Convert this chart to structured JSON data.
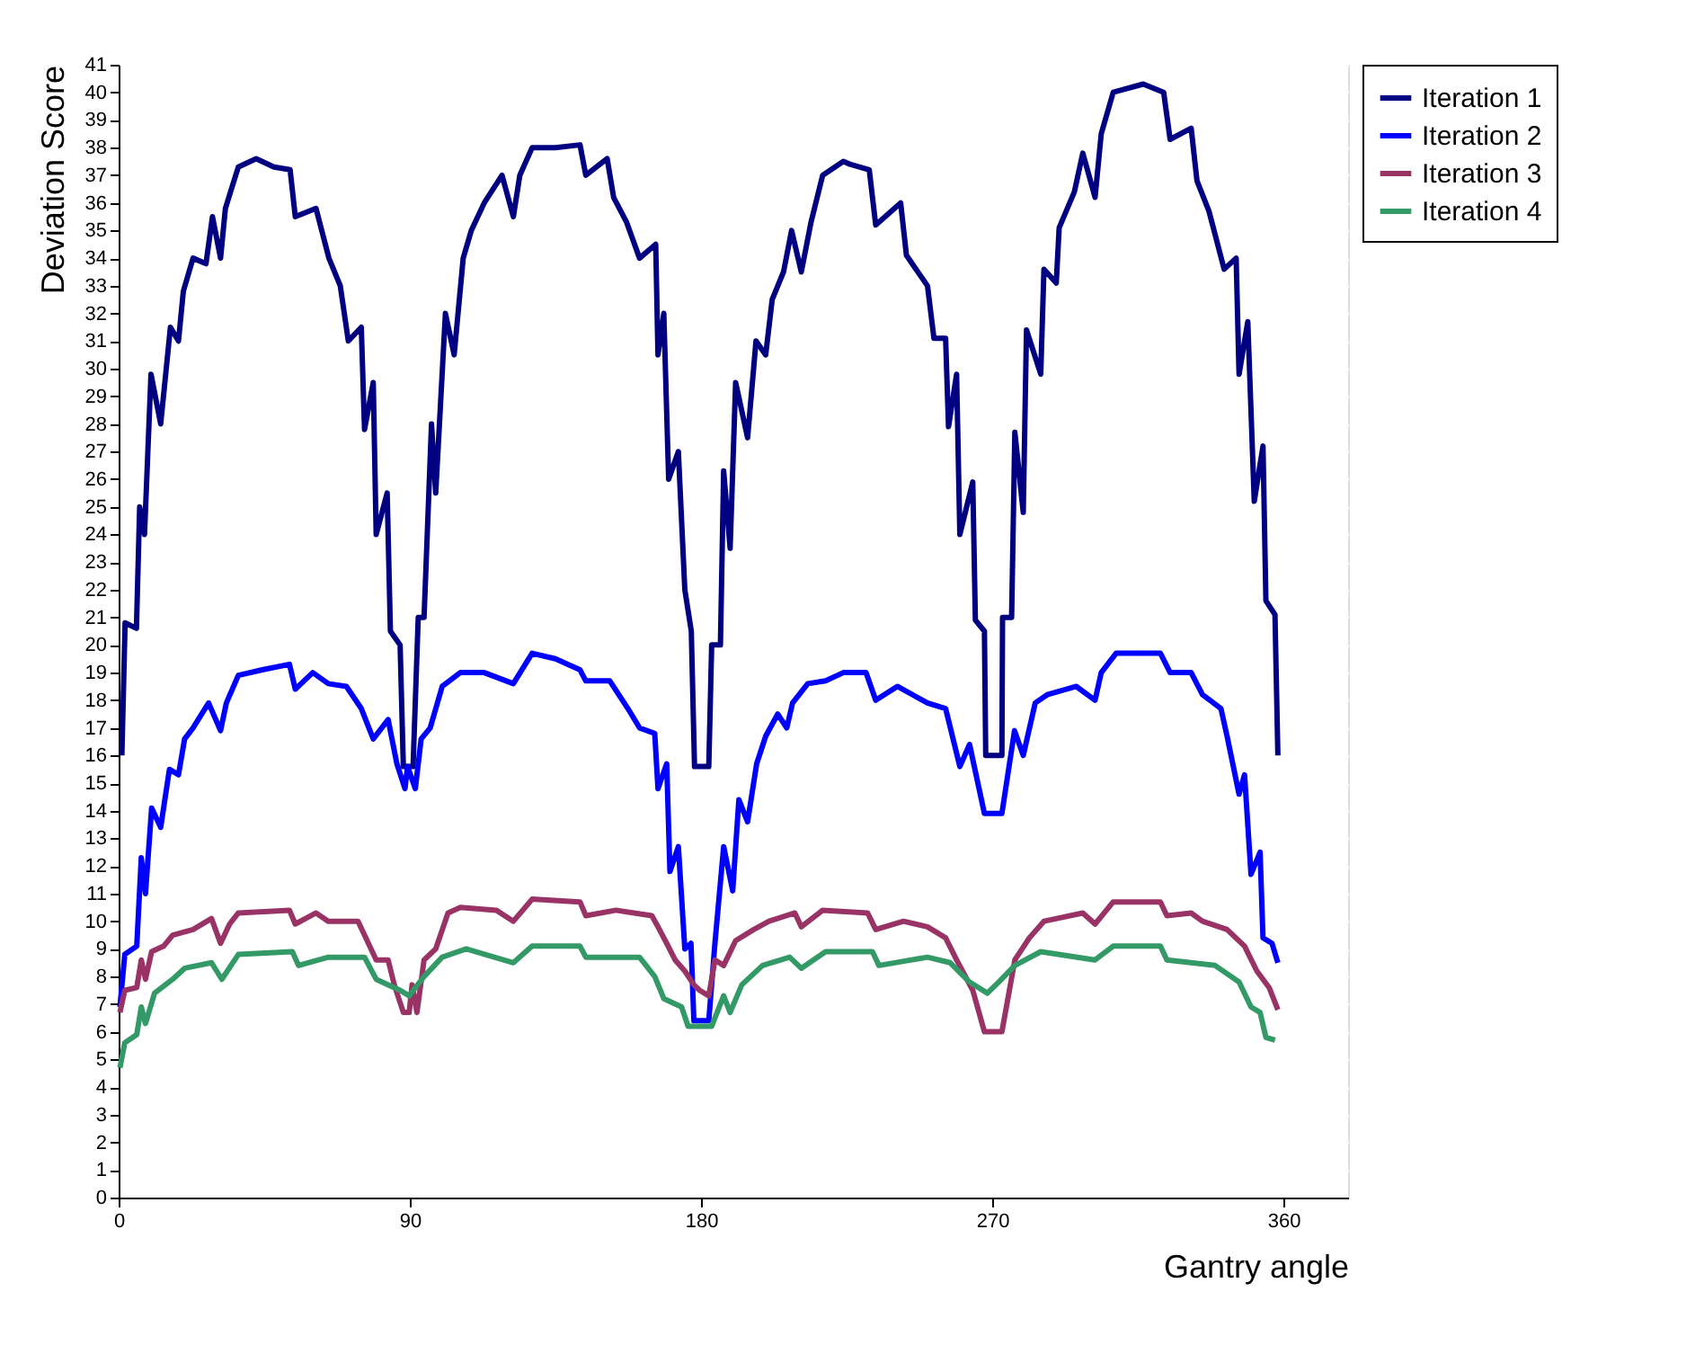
{
  "chart_data": {
    "type": "line",
    "xlabel": "Gantry angle",
    "ylabel": "Deviation Score",
    "xlim": [
      0,
      380
    ],
    "xticks": [
      0,
      90,
      180,
      270,
      360
    ],
    "ylim": [
      0,
      41
    ],
    "yticks": [
      0,
      1,
      2,
      3,
      4,
      5,
      6,
      7,
      8,
      9,
      10,
      11,
      12,
      13,
      14,
      15,
      16,
      17,
      18,
      19,
      20,
      21,
      22,
      23,
      24,
      25,
      26,
      27,
      28,
      29,
      30,
      31,
      32,
      33,
      34,
      35,
      36,
      37,
      38,
      39,
      40,
      41
    ],
    "grid": "y",
    "legend": "right",
    "marker": "none",
    "line_style": "solid",
    "series": [
      {
        "name": "Iteration 1",
        "color": "#000080",
        "x": [
          1,
          2,
          5.5,
          6.5,
          8,
          10,
          13,
          16,
          18.5,
          20,
          23,
          27,
          29,
          31.5,
          33,
          37,
          42.5,
          48,
          53,
          54.6,
          61,
          65,
          68.5,
          71,
          75,
          76,
          78.7,
          79.6,
          83,
          84,
          87,
          88,
          91,
          92.6,
          94.4,
          96.7,
          98,
          101,
          103.7,
          106.5,
          109,
          113,
          118.5,
          122,
          124,
          127.8,
          135,
          142.6,
          144.4,
          151,
          153,
          157,
          161,
          166,
          166.7,
          168.5,
          170,
          173,
          175,
          177,
          178,
          182.4,
          183.3,
          186,
          187,
          189,
          190.7,
          194.4,
          197,
          200,
          202,
          205.5,
          208,
          211,
          214,
          217.6,
          224,
          226,
          232,
          234,
          241.7,
          243.5,
          250,
          252,
          255.6,
          256.5,
          259,
          260,
          264,
          264.8,
          267.6,
          268,
          273,
          273.2,
          276,
          277,
          279.6,
          280.6,
          285,
          286,
          289.8,
          290.7,
          295.4,
          298,
          301.8,
          303.7,
          307.4,
          316.7,
          323,
          325,
          331.5,
          333.3,
          337,
          341.7,
          345.4,
          346.3,
          349,
          351,
          353.7,
          354.6,
          357.4,
          358.3
        ],
        "values": [
          16,
          20.8,
          20.6,
          25,
          24,
          29.8,
          28,
          31.5,
          31,
          32.8,
          34,
          33.8,
          35.5,
          34,
          35.8,
          37.3,
          37.6,
          37.3,
          37.2,
          35.5,
          35.8,
          34,
          33,
          31,
          31.5,
          27.8,
          29.5,
          24,
          25.5,
          20.5,
          20,
          15.6,
          15.6,
          21,
          21,
          28,
          25.5,
          32,
          30.5,
          34,
          35,
          36,
          37,
          35.5,
          37,
          38,
          38,
          38.1,
          37,
          37.6,
          36.2,
          35.3,
          34,
          34.5,
          30.5,
          32,
          26,
          27,
          22,
          20.5,
          15.6,
          15.6,
          20,
          20,
          26.3,
          23.5,
          29.5,
          27.5,
          31,
          30.5,
          32.5,
          33.5,
          35,
          33.5,
          35.3,
          37,
          37.5,
          37.4,
          37.2,
          35.2,
          36,
          34.1,
          33,
          31.1,
          31.1,
          27.9,
          29.8,
          24,
          25.9,
          20.9,
          20.5,
          16,
          16,
          21,
          21,
          27.7,
          24.8,
          31.4,
          29.8,
          33.6,
          33.1,
          35.1,
          36.4,
          37.8,
          36.2,
          38.5,
          40,
          40.3,
          40,
          38.3,
          38.7,
          36.8,
          35.7,
          33.6,
          34,
          29.8,
          31.7,
          25.2,
          27.2,
          21.6,
          21.1,
          16
        ]
      },
      {
        "name": "Iteration 2",
        "color": "#0000ff",
        "x": [
          0.4,
          1.9,
          5.6,
          7,
          8.3,
          10.2,
          13,
          15.7,
          18.5,
          20.4,
          23,
          27.8,
          31.5,
          33.3,
          37,
          44.4,
          52.8,
          54.6,
          60,
          64.8,
          70.4,
          75,
          78.7,
          83.3,
          86,
          88.5,
          89.3,
          91.7,
          93.5,
          96.3,
          100,
          105.6,
          113,
          122,
          127.8,
          135,
          142.6,
          144.4,
          151.8,
          157.4,
          161,
          165.7,
          166.7,
          169.4,
          170.4,
          173,
          175,
          176.9,
          177.8,
          182.4,
          184.3,
          187,
          189.8,
          191.7,
          194.4,
          197.2,
          200,
          203.7,
          206.5,
          208.3,
          213,
          218.5,
          224,
          231,
          234,
          240.7,
          250,
          255.6,
          260,
          263,
          267.6,
          273,
          276.9,
          279.6,
          283.3,
          287,
          296,
          301.8,
          303.7,
          308.3,
          322,
          325,
          331.5,
          335,
          340.7,
          342.6,
          346.3,
          348,
          350,
          352.8,
          353.7,
          356.5,
          358.3
        ],
        "values": [
          6.9,
          8.8,
          9.1,
          12.3,
          11,
          14.1,
          13.4,
          15.5,
          15.3,
          16.6,
          17,
          17.9,
          16.9,
          17.9,
          18.9,
          19.1,
          19.3,
          18.4,
          19,
          18.6,
          18.5,
          17.7,
          16.6,
          17.3,
          15.7,
          14.8,
          15.6,
          14.8,
          16.6,
          17,
          18.5,
          19,
          19,
          18.6,
          19.7,
          19.5,
          19.1,
          18.7,
          18.7,
          17.7,
          17,
          16.8,
          14.8,
          15.7,
          11.8,
          12.7,
          9,
          9.2,
          6.4,
          6.4,
          9.2,
          12.7,
          11.1,
          14.4,
          13.6,
          15.7,
          16.7,
          17.5,
          17,
          17.9,
          18.6,
          18.7,
          19,
          19,
          18,
          18.5,
          17.9,
          17.7,
          15.6,
          16.4,
          13.9,
          13.9,
          16.9,
          16,
          17.9,
          18.2,
          18.5,
          18,
          19,
          19.7,
          19.7,
          19,
          19,
          18.2,
          17.7,
          16.7,
          14.6,
          15.3,
          11.7,
          12.5,
          9.4,
          9.2,
          8.5
        ]
      },
      {
        "name": "Iteration 3",
        "color": "#993366",
        "x": [
          0.4,
          1.9,
          5.6,
          7,
          8.3,
          10.2,
          13.9,
          16.7,
          23,
          28.7,
          31.5,
          34.3,
          37,
          52.8,
          54.6,
          61,
          64.8,
          74,
          76,
          79.6,
          83.3,
          85.2,
          88,
          89.8,
          90.7,
          92.2,
          94.4,
          98,
          101.8,
          105.6,
          116.7,
          122,
          127.8,
          142.6,
          144.4,
          153.7,
          164.8,
          166.7,
          169.4,
          172,
          175,
          177.8,
          179.6,
          182.4,
          184.3,
          187,
          190.7,
          196.3,
          201,
          209,
          211,
          217.6,
          231.5,
          234,
          242.6,
          250,
          255.6,
          259,
          264,
          267.6,
          273,
          277,
          281.5,
          286,
          298,
          301.8,
          307.4,
          322,
          324,
          331.5,
          335,
          342.6,
          348,
          351.8,
          355.6,
          358.3
        ],
        "values": [
          6.7,
          7.5,
          7.6,
          8.6,
          7.9,
          8.9,
          9.1,
          9.5,
          9.7,
          10.1,
          9.2,
          9.9,
          10.3,
          10.4,
          9.9,
          10.3,
          10,
          10,
          9.5,
          8.6,
          8.6,
          7.7,
          6.7,
          6.7,
          7.7,
          6.7,
          8.6,
          9,
          10.3,
          10.5,
          10.4,
          10,
          10.8,
          10.7,
          10.2,
          10.4,
          10.2,
          9.8,
          9.2,
          8.6,
          8.2,
          7.7,
          7.5,
          7.3,
          8.6,
          8.4,
          9.3,
          9.7,
          10,
          10.3,
          9.8,
          10.4,
          10.3,
          9.7,
          10,
          9.8,
          9.4,
          8.6,
          7.5,
          6,
          6,
          8.6,
          9.4,
          10,
          10.3,
          9.9,
          10.7,
          10.7,
          10.2,
          10.3,
          10,
          9.7,
          9.1,
          8.2,
          7.6,
          6.8
        ]
      },
      {
        "name": "Iteration 4",
        "color": "#339966",
        "x": [
          0.4,
          1.9,
          5.6,
          7,
          8.3,
          11.1,
          16.7,
          20.4,
          28.7,
          31.9,
          37,
          53.7,
          55.6,
          64.8,
          76,
          79.6,
          87,
          89.8,
          94.4,
          100,
          107.4,
          122,
          127.8,
          142.6,
          144.4,
          161,
          165.7,
          168.5,
          174,
          176,
          183.3,
          187,
          189,
          192.6,
          199,
          207.4,
          211,
          218.5,
          233,
          235,
          250,
          257,
          263,
          268.5,
          272,
          277,
          285,
          301.8,
          307.4,
          322,
          324,
          338.9,
          346.3,
          350,
          352.8,
          354.6,
          357.4
        ],
        "values": [
          4.7,
          5.6,
          5.9,
          6.9,
          6.3,
          7.4,
          7.9,
          8.3,
          8.5,
          7.9,
          8.8,
          8.9,
          8.4,
          8.7,
          8.7,
          7.9,
          7.5,
          7.3,
          8,
          8.7,
          9,
          8.5,
          9.1,
          9.1,
          8.7,
          8.7,
          8,
          7.2,
          6.9,
          6.2,
          6.2,
          7.3,
          6.7,
          7.7,
          8.4,
          8.7,
          8.3,
          8.9,
          8.9,
          8.4,
          8.7,
          8.5,
          7.8,
          7.4,
          7.8,
          8.4,
          8.9,
          8.6,
          9.1,
          9.1,
          8.6,
          8.4,
          7.8,
          6.9,
          6.7,
          5.8,
          5.7
        ]
      }
    ]
  }
}
